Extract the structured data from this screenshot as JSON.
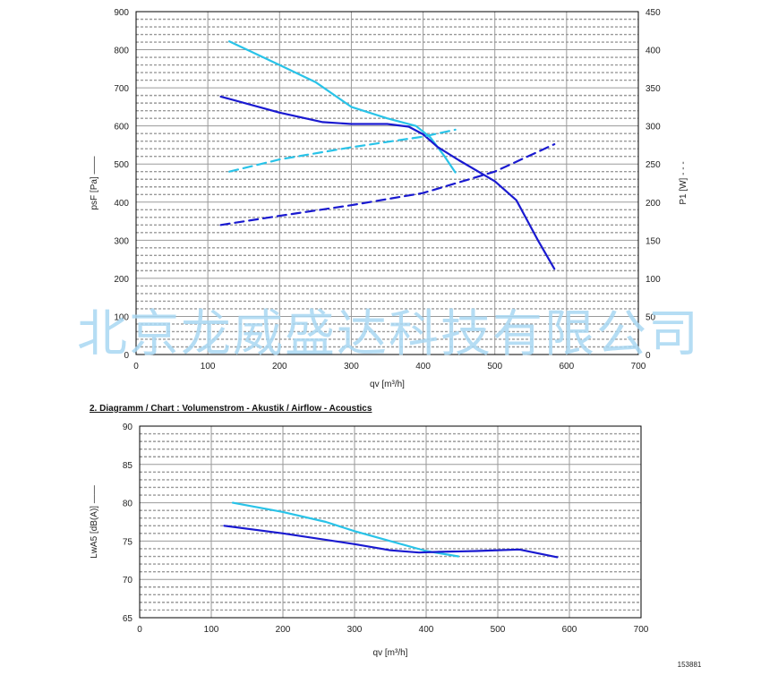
{
  "watermark": "北京龙威盛达科技有限公司",
  "chart2_title": "2. Diagramm / Chart :   Volumenstrom - Akustik / Airflow - Acoustics",
  "footer_ref": "153881",
  "colors": {
    "dark_series": "#1a1ad0",
    "light_series": "#29c3e8",
    "grid_major": "#9a9a9a",
    "grid_minor": "#9a9a9a"
  },
  "chart_data": [
    {
      "type": "line",
      "xlabel": "qv [m³/h]",
      "ylabel": "psF [Pa]  ——",
      "y2label": "P1 [W]  - - -",
      "xlim": [
        0,
        700
      ],
      "ylim": [
        0,
        900
      ],
      "y2lim": [
        0,
        450
      ],
      "xticks": [
        0,
        100,
        200,
        300,
        400,
        500,
        600,
        700
      ],
      "yticks": [
        0,
        100,
        200,
        300,
        400,
        500,
        600,
        700,
        800,
        900
      ],
      "y2ticks": [
        0,
        50,
        100,
        150,
        200,
        250,
        300,
        350,
        400,
        450
      ],
      "grid": true,
      "series": [
        {
          "axis": "left",
          "style": "solid",
          "color": "#29c3e8",
          "x": [
            130,
            200,
            250,
            300,
            350,
            390,
            410,
            430,
            445
          ],
          "y": [
            822,
            760,
            715,
            650,
            620,
            600,
            570,
            520,
            478
          ]
        },
        {
          "axis": "left",
          "style": "solid",
          "color": "#1a1ad0",
          "x": [
            118,
            200,
            260,
            300,
            350,
            380,
            400,
            420,
            450,
            500,
            530,
            560,
            583
          ],
          "y": [
            677,
            635,
            610,
            605,
            605,
            598,
            578,
            545,
            510,
            455,
            405,
            300,
            225
          ]
        },
        {
          "axis": "right",
          "style": "dashed",
          "color": "#29c3e8",
          "x": [
            130,
            200,
            300,
            400,
            445
          ],
          "y": [
            240,
            256,
            272,
            286,
            295
          ]
        },
        {
          "axis": "right",
          "style": "dashed",
          "color": "#1a1ad0",
          "x": [
            118,
            200,
            300,
            400,
            500,
            583
          ],
          "y": [
            170,
            182,
            196,
            212,
            240,
            276
          ]
        }
      ]
    },
    {
      "type": "line",
      "title": "2. Diagramm / Chart :   Volumenstrom - Akustik / Airflow - Acoustics",
      "xlabel": "qv [m³/h]",
      "ylabel": "LwA5 [dB(A)]  ——",
      "xlim": [
        0,
        700
      ],
      "ylim": [
        65,
        90
      ],
      "xticks": [
        0,
        100,
        200,
        300,
        400,
        500,
        600,
        700
      ],
      "yticks": [
        65,
        70,
        75,
        80,
        85,
        90
      ],
      "grid": true,
      "series": [
        {
          "style": "solid",
          "color": "#29c3e8",
          "x": [
            130,
            200,
            260,
            300,
            350,
            400,
            445
          ],
          "y": [
            80,
            78.8,
            77.5,
            76.3,
            75,
            73.7,
            73
          ]
        },
        {
          "style": "solid",
          "color": "#1a1ad0",
          "x": [
            118,
            200,
            300,
            350,
            390,
            420,
            470,
            530,
            583
          ],
          "y": [
            77,
            76,
            74.6,
            73.8,
            73.5,
            73.6,
            73.7,
            73.9,
            72.9
          ]
        }
      ]
    }
  ]
}
